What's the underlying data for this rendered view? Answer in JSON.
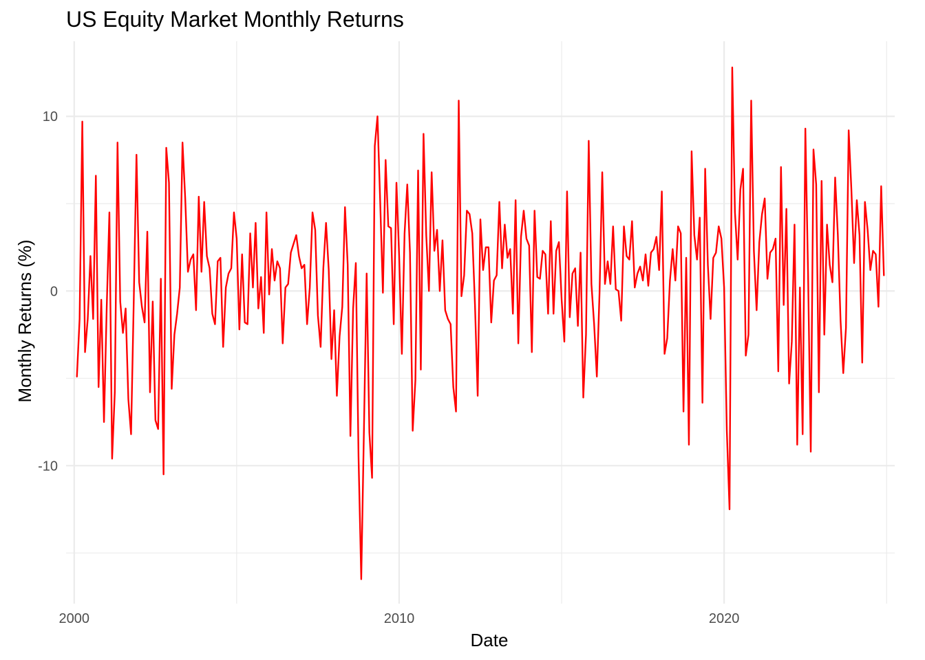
{
  "chart_data": {
    "type": "line",
    "title": "US Equity Market Monthly Returns",
    "xlabel": "Date",
    "ylabel": "Monthly Returns (%)",
    "x_ticks": [
      "2000",
      "2010",
      "2020"
    ],
    "y_ticks": [
      "-10",
      "0",
      "10"
    ],
    "xlim": [
      "1999-10-01",
      "2025-04-01"
    ],
    "ylim": [
      -17.9,
      14.3
    ],
    "grid": true,
    "line_color": "#ff0000",
    "series": [
      {
        "start": "2000-02",
        "frequency": "monthly",
        "values": [
          -4.9,
          -1.6,
          9.7,
          -3.5,
          -1.6,
          2.0,
          -1.6,
          6.6,
          -5.5,
          -0.5,
          -7.5,
          -1.0,
          4.5,
          -9.6,
          -5.8,
          8.5,
          -0.6,
          -2.4,
          -1.0,
          -6.2,
          -8.2,
          -0.5,
          7.8,
          0.5,
          -0.9,
          -1.8,
          3.4,
          -5.8,
          -0.6,
          -7.4,
          -7.9,
          0.7,
          -10.5,
          8.2,
          6.2,
          -5.6,
          -2.5,
          -1.3,
          0.2,
          8.5,
          5.3,
          1.1,
          1.8,
          2.1,
          -1.1,
          5.4,
          1.1,
          5.1,
          2.0,
          1.3,
          -1.3,
          -1.9,
          1.7,
          1.9,
          -3.2,
          0.2,
          1.0,
          1.3,
          4.5,
          3.0,
          -2.2,
          2.1,
          -1.8,
          -1.9,
          3.3,
          0.2,
          3.9,
          -1.0,
          0.8,
          -2.4,
          4.5,
          -0.2,
          2.4,
          0.6,
          1.7,
          1.3,
          -3.0,
          0.2,
          0.4,
          2.2,
          2.7,
          3.2,
          2.0,
          1.3,
          1.5,
          -1.9,
          0.2,
          4.5,
          3.5,
          -1.4,
          -3.2,
          1.3,
          3.9,
          1.2,
          -3.9,
          -1.1,
          -6.0,
          -2.6,
          -0.9,
          4.8,
          1.5,
          -8.3,
          -1.0,
          1.6,
          -9.5,
          -16.5,
          -7.9,
          1.0,
          -8.1,
          -10.7,
          8.3,
          10.0,
          5.1,
          -0.1,
          7.5,
          3.7,
          3.6,
          -1.9,
          6.2,
          2.0,
          -3.6,
          3.3,
          6.1,
          2.2,
          -8.0,
          -5.1,
          6.9,
          -4.5,
          9.0,
          3.2,
          0.0,
          6.8,
          2.3,
          3.5,
          0.0,
          2.9,
          -1.1,
          -1.6,
          -1.9,
          -5.5,
          -6.9,
          10.9,
          -0.3,
          0.9,
          4.6,
          4.4,
          3.3,
          -0.8,
          -6.0,
          4.1,
          1.2,
          2.5,
          2.5,
          -1.8,
          0.6,
          0.9,
          5.1,
          1.3,
          3.8,
          1.9,
          2.4,
          -1.3,
          5.2,
          -3.0,
          3.1,
          4.6,
          3.0,
          2.6,
          -3.5,
          4.6,
          0.8,
          0.7,
          2.3,
          2.1,
          -1.3,
          4.0,
          -1.3,
          2.3,
          2.8,
          -0.5,
          -2.9,
          5.7,
          -1.5,
          1.0,
          1.3,
          -2.0,
          2.2,
          -6.1,
          -2.5,
          8.6,
          0.4,
          -1.9,
          -4.9,
          -0.1,
          6.8,
          0.4,
          1.7,
          0.4,
          3.7,
          0.1,
          0.0,
          -1.7,
          3.7,
          2.0,
          1.8,
          4.0,
          0.2,
          1.0,
          1.4,
          0.6,
          2.1,
          0.3,
          2.2,
          2.4,
          3.1,
          1.2,
          5.7,
          -3.6,
          -2.7,
          0.6,
          2.4,
          0.6,
          3.7,
          3.3,
          -6.9,
          1.9,
          -8.8,
          8.0,
          3.2,
          1.8,
          4.2,
          -6.4,
          7.0,
          1.5,
          -1.6,
          1.9,
          2.2,
          3.7,
          3.0,
          0.2,
          -8.0,
          -12.5,
          12.8,
          4.5,
          1.8,
          5.8,
          7.0,
          -3.7,
          -2.5,
          10.9,
          2.3,
          -1.1,
          2.8,
          4.4,
          5.3,
          0.7,
          2.2,
          2.4,
          3.0,
          -4.6,
          7.1,
          -0.8,
          4.7,
          -5.3,
          -2.9,
          3.8,
          -8.8,
          0.2,
          -8.2,
          9.3,
          1.0,
          -9.2,
          8.1,
          6.1,
          -5.8,
          6.3,
          -2.5,
          3.8,
          1.5,
          0.5,
          6.5,
          3.2,
          -1.7,
          -4.7,
          -2.1,
          9.2,
          5.8,
          1.6,
          5.2,
          3.2,
          -4.1,
          5.1,
          3.5,
          1.2,
          2.3,
          2.1,
          -0.9,
          6.0,
          0.9
        ]
      }
    ]
  }
}
